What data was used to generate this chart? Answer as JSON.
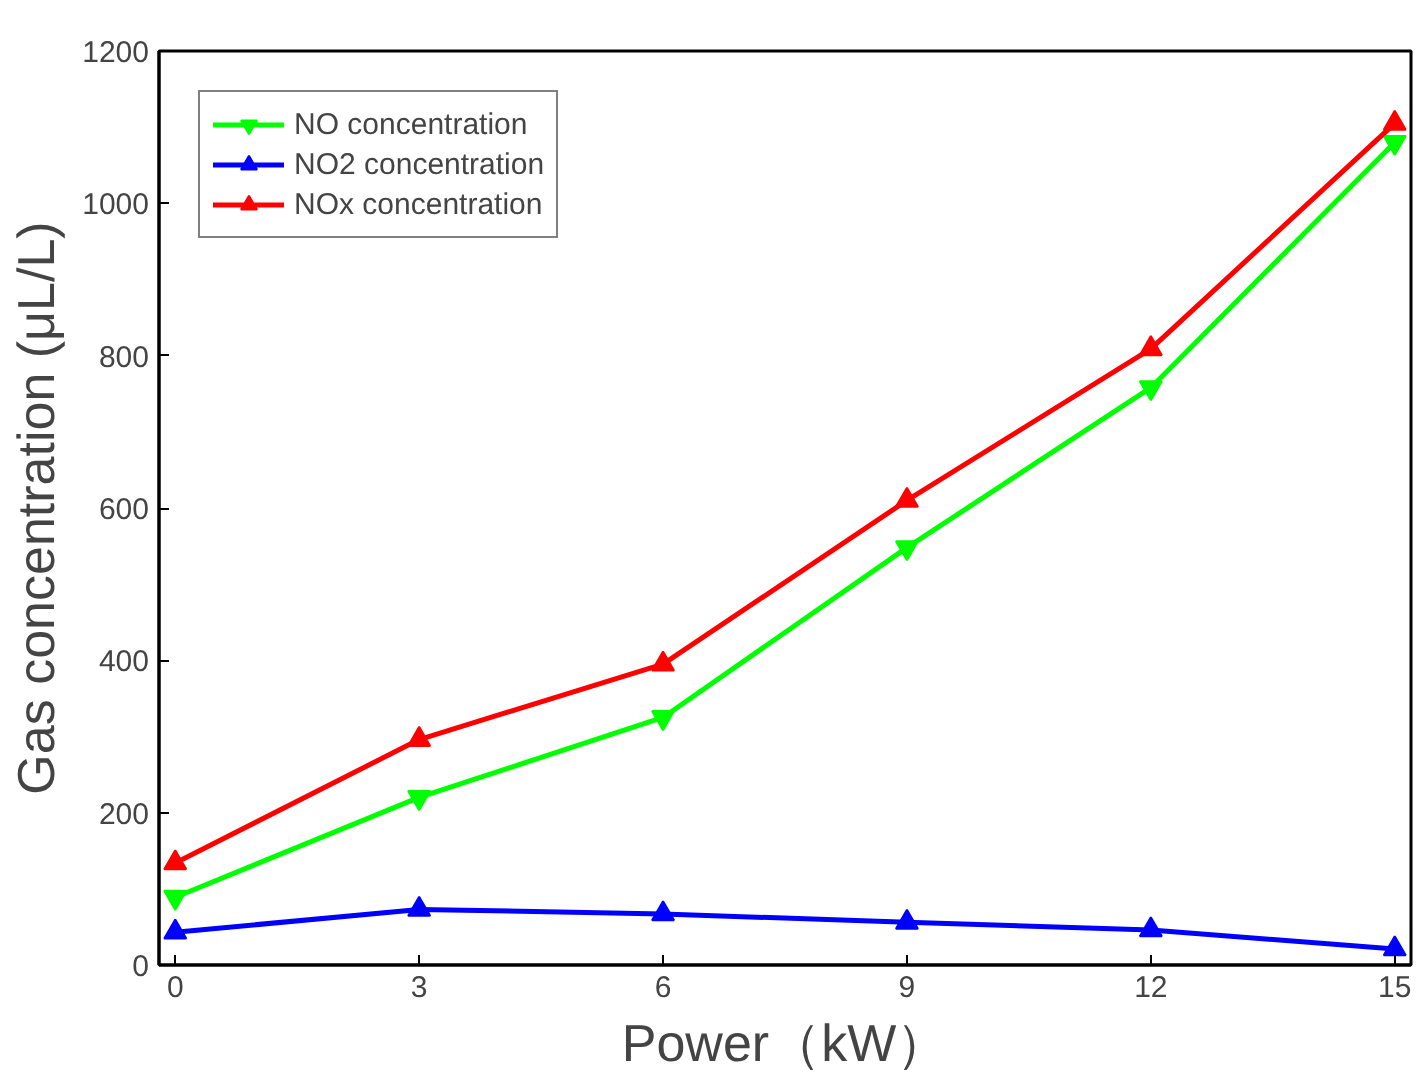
{
  "chart_data": {
    "type": "line",
    "xlabel": "Power（kW）",
    "ylabel": "Gas concentration (μL/L)",
    "x": [
      0,
      3,
      6,
      9,
      12,
      15
    ],
    "series": [
      {
        "name": "NO concentration",
        "color": "#00ff00",
        "marker": "triangle_down",
        "values": [
          89,
          220,
          325,
          548,
          758,
          1080
        ]
      },
      {
        "name": "NO2 concentration",
        "color": "#0000ff",
        "marker": "triangle",
        "values": [
          43,
          73,
          67,
          56,
          46,
          21
        ]
      },
      {
        "name": "NOx concentration",
        "color": "#ff0000",
        "marker": "triangle",
        "values": [
          134,
          296,
          395,
          610,
          809,
          1105
        ]
      }
    ],
    "xlim": [
      -0.2,
      15.2
    ],
    "xticks": [
      0,
      3,
      6,
      9,
      12,
      15
    ],
    "ylim": [
      0,
      1200
    ],
    "yticks": [
      0,
      200,
      400,
      600,
      800,
      1000,
      1200
    ],
    "grid": false,
    "legend": "top left",
    "line_style": "solid"
  }
}
